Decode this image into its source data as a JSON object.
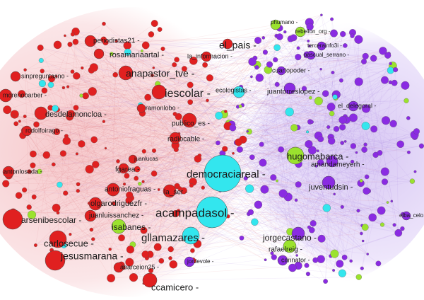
{
  "nodes": [
    {
      "label": "periodistas21 -",
      "color": "#e02020"
    },
    {
      "label": "rosamariaartal -",
      "color": "#e02020"
    },
    {
      "label": "el_pais -",
      "color": "#e02020"
    },
    {
      "label": "anapastor_tve -",
      "color": "#e02020"
    },
    {
      "label": "iescolar -",
      "color": "#e02020"
    },
    {
      "label": "desdelamoncloa -",
      "color": "#e02020"
    },
    {
      "label": "democraciareal -",
      "color": "#33e6ee"
    },
    {
      "label": "acampadasol -",
      "color": "#33e6ee"
    },
    {
      "label": "gllamazares -",
      "color": "#33e6ee"
    },
    {
      "label": "hugomabarca -",
      "color": "#9be22e"
    },
    {
      "label": "jesusmarana -",
      "color": "#e02020"
    },
    {
      "label": "carlosecue -",
      "color": "#e02020"
    },
    {
      "label": "arsenibescolar -",
      "color": "#e02020"
    },
    {
      "label": "ccamicero -",
      "color": "#e02020"
    },
    {
      "label": "isabanes -",
      "color": "#9be22e"
    },
    {
      "label": "jorgecastano -",
      "color": "#8a2be2"
    },
    {
      "label": "juventudsin -",
      "color": "#8a2be2"
    },
    {
      "label": "amandameyerh -",
      "color": "#8a2be2"
    },
    {
      "label": "juantorreslopez -",
      "color": "#8a2be2"
    },
    {
      "label": "publico_es -",
      "color": "#e02020"
    },
    {
      "label": "radiocable -",
      "color": "#e02020"
    },
    {
      "label": "la_ser -",
      "color": "#e02020"
    },
    {
      "label": "antoniofraguas -",
      "color": "#e02020"
    },
    {
      "label": "olgarodriguezfr -",
      "color": "#e02020"
    },
    {
      "label": "juanluissanchez -",
      "color": "#e02020"
    },
    {
      "label": "fgarea -",
      "color": "#e02020"
    },
    {
      "label": "elba_celo",
      "color": "#8a2be2"
    },
    {
      "label": "rafaelreig -",
      "color": "#9be22e"
    },
    {
      "label": "cuartopoder -",
      "color": "#8a2be2"
    },
    {
      "label": "pascual_serrano -",
      "color": "#8a2be2"
    },
    {
      "label": "rebelion_org -",
      "color": "#9be22e"
    },
    {
      "label": "phumano -",
      "color": "#9be22e"
    },
    {
      "label": "ecologistas -",
      "color": "#33e6ee"
    },
    {
      "label": "ramonlobo -",
      "color": "#e02020"
    },
    {
      "label": "sinpreguntasno -",
      "color": "#e02020"
    },
    {
      "label": "morenobarber -",
      "color": "#e02020"
    },
    {
      "label": "antonlosada -",
      "color": "#e02020"
    },
    {
      "label": "rodolfoirago -",
      "color": "#e02020"
    },
    {
      "label": "el_delegoral -",
      "color": "#8a2be2"
    },
    {
      "label": "abarceion25 -",
      "color": "#e02020"
    },
    {
      "label": "cannator -",
      "color": "#8a2be2"
    },
    {
      "label": "jordevole -",
      "color": "#8a2be2"
    },
    {
      "label": "la_informacion -",
      "color": "#e02020"
    },
    {
      "label": "juanlucas",
      "color": "#e02020"
    },
    {
      "label": "tercerainfo3i -",
      "color": "#8a2be2"
    }
  ]
}
